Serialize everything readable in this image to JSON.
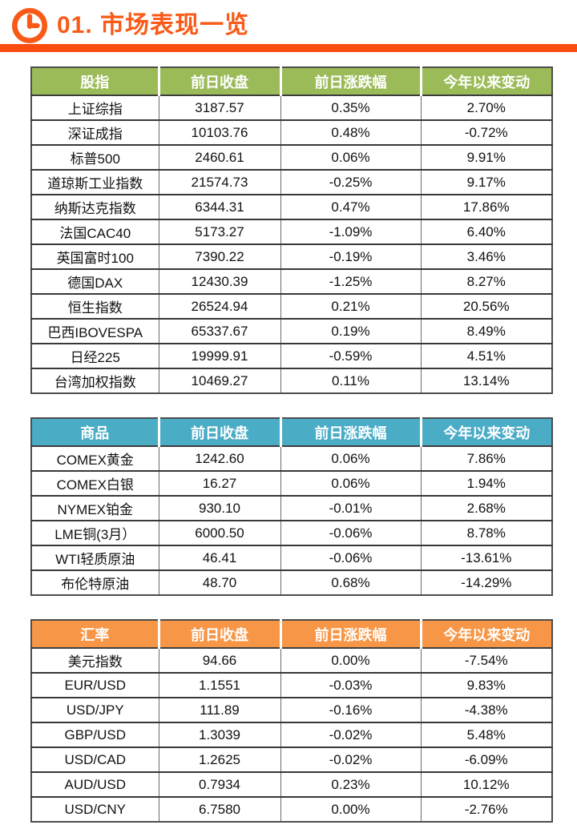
{
  "header": {
    "title": "01. 市场表现一览",
    "icon": "clock-icon",
    "accent_color": "#F95A17",
    "bar_color": "#FB4C0F"
  },
  "tables": [
    {
      "id": "stock-indices",
      "header_color": "#9BBB59",
      "headers": [
        "股指",
        "前日收盘",
        "前日涨跌幅",
        "今年以来变动"
      ],
      "rows": [
        [
          "上证综指",
          "3187.57",
          "0.35%",
          "2.70%"
        ],
        [
          "深证成指",
          "10103.76",
          "0.48%",
          "-0.72%"
        ],
        [
          "标普500",
          "2460.61",
          "0.06%",
          "9.91%"
        ],
        [
          "道琼斯工业指数",
          "21574.73",
          "-0.25%",
          "9.17%"
        ],
        [
          "纳斯达克指数",
          "6344.31",
          "0.47%",
          "17.86%"
        ],
        [
          "法国CAC40",
          "5173.27",
          "-1.09%",
          "6.40%"
        ],
        [
          "英国富时100",
          "7390.22",
          "-0.19%",
          "3.46%"
        ],
        [
          "德国DAX",
          "12430.39",
          "-1.25%",
          "8.27%"
        ],
        [
          "恒生指数",
          "26524.94",
          "0.21%",
          "20.56%"
        ],
        [
          "巴西IBOVESPA",
          "65337.67",
          "0.19%",
          "8.49%"
        ],
        [
          "日经225",
          "19999.91",
          "-0.59%",
          "4.51%"
        ],
        [
          "台湾加权指数",
          "10469.27",
          "0.11%",
          "13.14%"
        ]
      ]
    },
    {
      "id": "commodities",
      "header_color": "#4BACC6",
      "headers": [
        "商品",
        "前日收盘",
        "前日涨跌幅",
        "今年以来变动"
      ],
      "rows": [
        [
          "COMEX黄金",
          "1242.60",
          "0.06%",
          "7.86%"
        ],
        [
          "COMEX白银",
          "16.27",
          "0.06%",
          "1.94%"
        ],
        [
          "NYMEX铂金",
          "930.10",
          "-0.01%",
          "2.68%"
        ],
        [
          "LME铜(3月）",
          "6000.50",
          "-0.06%",
          "8.78%"
        ],
        [
          "WTI轻质原油",
          "46.41",
          "-0.06%",
          "-13.61%"
        ],
        [
          "布伦特原油",
          "48.70",
          "0.68%",
          "-14.29%"
        ]
      ]
    },
    {
      "id": "fx-rates",
      "header_color": "#F79646",
      "headers": [
        "汇率",
        "前日收盘",
        "前日涨跌幅",
        "今年以来变动"
      ],
      "rows": [
        [
          "美元指数",
          "94.66",
          "0.00%",
          "-7.54%"
        ],
        [
          "EUR/USD",
          "1.1551",
          "-0.03%",
          "9.83%"
        ],
        [
          "USD/JPY",
          "111.89",
          "-0.16%",
          "-4.38%"
        ],
        [
          "GBP/USD",
          "1.3039",
          "-0.02%",
          "5.48%"
        ],
        [
          "USD/CAD",
          "1.2625",
          "-0.02%",
          "-6.09%"
        ],
        [
          "AUD/USD",
          "0.7934",
          "0.23%",
          "10.12%"
        ],
        [
          "USD/CNY",
          "6.7580",
          "0.00%",
          "-2.76%"
        ]
      ]
    }
  ]
}
